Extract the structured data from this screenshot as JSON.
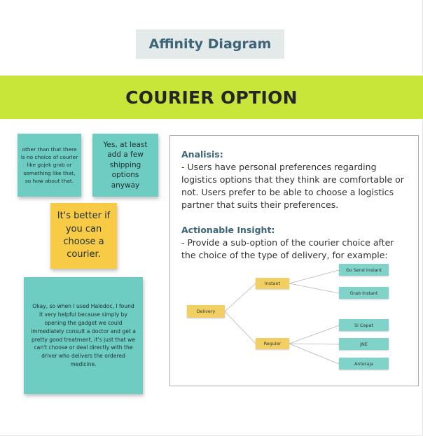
{
  "header": {
    "title": "Affinity Diagram"
  },
  "banner": {
    "title": "COURIER OPTION"
  },
  "stickies": {
    "s1": "other than that there is no choice of courier like gojek grab or something like that, so how about that.",
    "s2": "Yes, at least add a few shipping options anyway",
    "s3": "It's better if you can choose a courier.",
    "s4": "Okay, so when I used Halodoc, I found it very helpful because simply by opening the gadget we could immediately consult a doctor and get a pretty good treatment, it's just that we can't choose or deal directly with the driver who delivers the ordered medicine."
  },
  "panel": {
    "analysis_heading": "Analisis:",
    "analysis_text": "- Users have personal preferences regarding logistics options that they think are comfortable or not. Users prefer to be able to choose a logistics partner that suits their preferences.",
    "insight_heading": "Actionable Insight:",
    "insight_text": "- Provide a sub-option of the courier choice after the choice of the type of delivery, for example:"
  },
  "diagram": {
    "root": "Delivery",
    "branches": [
      {
        "label": "Instant",
        "children": [
          "Go Send Instant",
          "Grab Instant"
        ]
      },
      {
        "label": "Reguler",
        "children": [
          "Si Cepat",
          "JNE",
          "Anteraja"
        ]
      }
    ]
  },
  "colors": {
    "banner": "#c8e53a",
    "teal_sticky": "#6dcdc3",
    "yellow_sticky": "#f7cb45",
    "heading_blue": "#3d6578"
  }
}
